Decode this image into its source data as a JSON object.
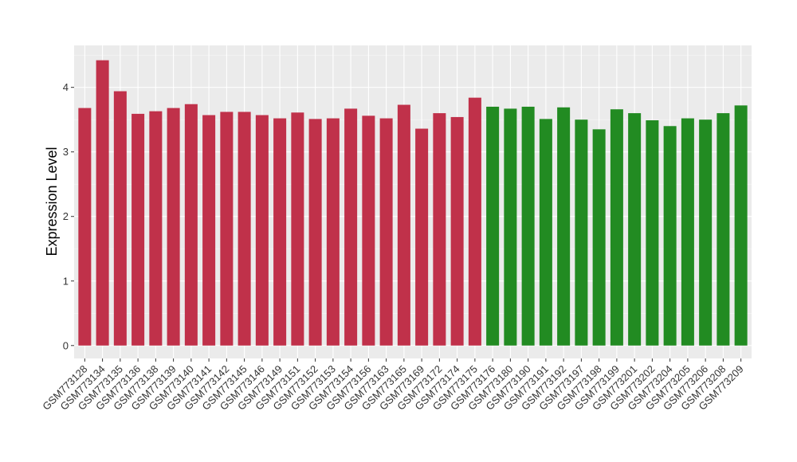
{
  "chart_data": {
    "type": "bar",
    "title": "",
    "xlabel": "",
    "ylabel": "Expression Level",
    "ylim": [
      -0.2,
      4.65
    ],
    "yticks": [
      0,
      1,
      2,
      3,
      4
    ],
    "grid": true,
    "legend": "none",
    "panel_color": "#ebebeb",
    "colors": {
      "group_a": "#c0314a",
      "group_b": "#228b22"
    },
    "categories": [
      "GSM773128",
      "GSM773134",
      "GSM773135",
      "GSM773136",
      "GSM773138",
      "GSM773139",
      "GSM773140",
      "GSM773141",
      "GSM773142",
      "GSM773145",
      "GSM773146",
      "GSM773149",
      "GSM773151",
      "GSM773152",
      "GSM773153",
      "GSM773154",
      "GSM773156",
      "GSM773163",
      "GSM773165",
      "GSM773169",
      "GSM773172",
      "GSM773174",
      "GSM773175",
      "GSM773176",
      "GSM773180",
      "GSM773190",
      "GSM773191",
      "GSM773192",
      "GSM773197",
      "GSM773198",
      "GSM773199",
      "GSM773201",
      "GSM773202",
      "GSM773204",
      "GSM773205",
      "GSM773206",
      "GSM773208",
      "GSM773209"
    ],
    "values": [
      3.68,
      4.42,
      3.94,
      3.59,
      3.63,
      3.68,
      3.74,
      3.57,
      3.62,
      3.62,
      3.57,
      3.52,
      3.61,
      3.51,
      3.52,
      3.67,
      3.56,
      3.52,
      3.73,
      3.36,
      3.6,
      3.54,
      3.84,
      3.7,
      3.67,
      3.7,
      3.51,
      3.69,
      3.5,
      3.35,
      3.66,
      3.6,
      3.49,
      3.4,
      3.52,
      3.5,
      3.6,
      3.72
    ],
    "groups": [
      "a",
      "a",
      "a",
      "a",
      "a",
      "a",
      "a",
      "a",
      "a",
      "a",
      "a",
      "a",
      "a",
      "a",
      "a",
      "a",
      "a",
      "a",
      "a",
      "a",
      "a",
      "a",
      "a",
      "b",
      "b",
      "b",
      "b",
      "b",
      "b",
      "b",
      "b",
      "b",
      "b",
      "b",
      "b",
      "b",
      "b",
      "b"
    ]
  }
}
